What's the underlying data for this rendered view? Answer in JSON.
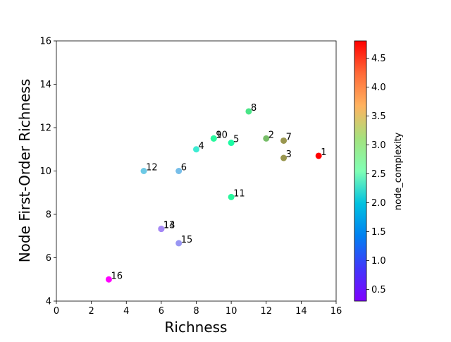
{
  "chart_data": {
    "type": "scatter",
    "title": "",
    "xlabel": "Richness",
    "ylabel": "Node First-Order Richness",
    "xlim": [
      0,
      16
    ],
    "ylim": [
      4,
      16
    ],
    "x_ticks": [
      "0",
      "2",
      "4",
      "6",
      "8",
      "10",
      "12",
      "14",
      "16"
    ],
    "y_ticks": [
      "4",
      "6",
      "8",
      "10",
      "12",
      "14",
      "16"
    ],
    "grid": false,
    "colorbar": {
      "label": "node_complexity",
      "colormap": "rainbow",
      "range": [
        0.3,
        4.8
      ],
      "ticks": [
        "0.5",
        "1.0",
        "1.5",
        "2.0",
        "2.5",
        "3.0",
        "3.5",
        "4.0",
        "4.5"
      ]
    },
    "points": [
      {
        "label": "1",
        "x": 15,
        "y": 10.7,
        "node_complexity": 4.8
      },
      {
        "label": "2",
        "x": 12,
        "y": 11.5,
        "node_complexity": 3.6
      },
      {
        "label": "3",
        "x": 13,
        "y": 10.6,
        "node_complexity": 3.9
      },
      {
        "label": "4",
        "x": 8,
        "y": 11.0,
        "node_complexity": 2.0
      },
      {
        "label": "5",
        "x": 10,
        "y": 11.3,
        "node_complexity": 2.8
      },
      {
        "label": "6",
        "x": 7,
        "y": 10.0,
        "node_complexity": 1.5
      },
      {
        "label": "7",
        "x": 13,
        "y": 11.4,
        "node_complexity": 3.9
      },
      {
        "label": "8",
        "x": 11,
        "y": 12.75,
        "node_complexity": 3.2
      },
      {
        "label": "9",
        "x": 9,
        "y": 11.5,
        "node_complexity": 2.9
      },
      {
        "label": "10",
        "x": 9,
        "y": 11.5,
        "node_complexity": 2.9
      },
      {
        "label": "11",
        "x": 10,
        "y": 8.8,
        "node_complexity": 2.9
      },
      {
        "label": "12",
        "x": 5,
        "y": 10.0,
        "node_complexity": 1.6
      },
      {
        "label": "13",
        "x": 6,
        "y": 7.33,
        "node_complexity": 1.1
      },
      {
        "label": "14",
        "x": 6,
        "y": 7.33,
        "node_complexity": 1.1
      },
      {
        "label": "15",
        "x": 7,
        "y": 6.67,
        "node_complexity": 1.2
      },
      {
        "label": "16",
        "x": 3,
        "y": 5.0,
        "node_complexity": 0.3
      }
    ]
  }
}
